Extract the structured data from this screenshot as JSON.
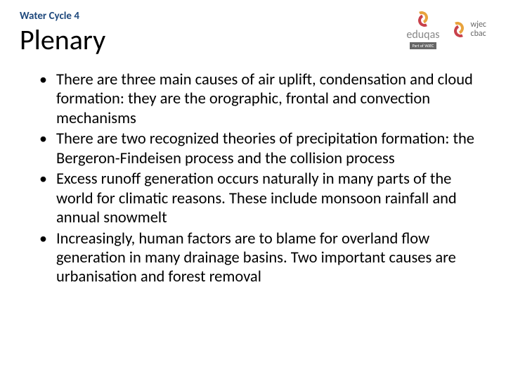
{
  "header": {
    "label": "Water Cycle 4",
    "title": "Plenary"
  },
  "logos": {
    "eduqas": {
      "text": "eduqas",
      "sub": "Part of WJEC"
    },
    "wjec": {
      "line1": "wjec",
      "line2": "cbac"
    }
  },
  "bullets": [
    "There are three main causes of air uplift, condensation and cloud formation: they are the orographic, frontal and convection mechanisms",
    "There are two recognized theories of precipitation formation: the Bergeron-Findeisen process and the collision process",
    "Excess runoff generation occurs naturally in many parts of the world for climatic reasons. These  include monsoon rainfall and annual snowmelt",
    "Increasingly, human factors are to blame for overland flow generation in many drainage basins. Two important causes are urbanisation and forest removal"
  ],
  "style": {
    "header_color": "#1f497d",
    "title_fontsize": 40,
    "body_fontsize": 22.5,
    "background": "#ffffff",
    "logo_orange": "#e8a33d",
    "logo_red": "#c8414b"
  }
}
